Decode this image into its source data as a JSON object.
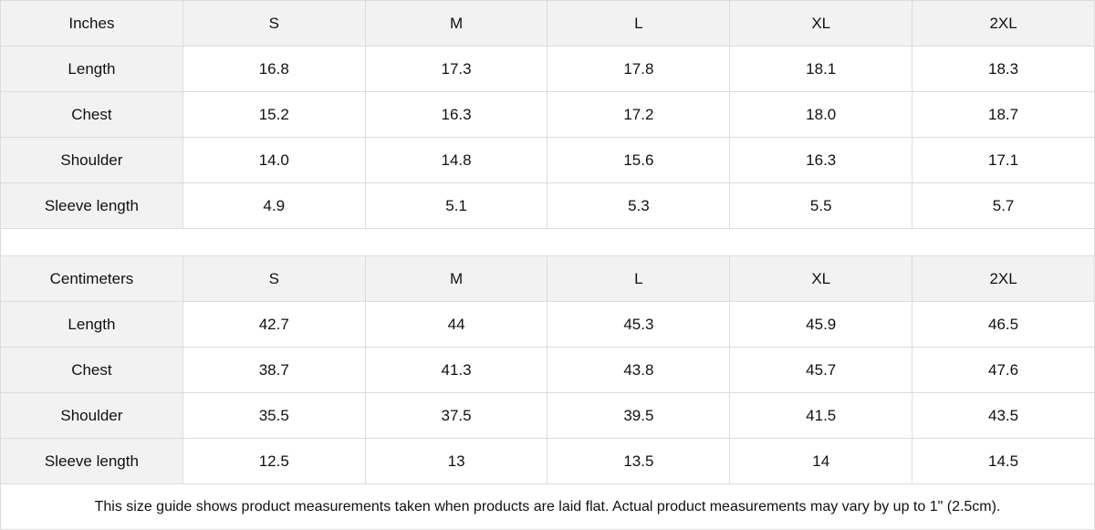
{
  "inches": {
    "header": [
      "Inches",
      "S",
      "M",
      "L",
      "XL",
      "2XL"
    ],
    "rows": [
      [
        "Length",
        "16.8",
        "17.3",
        "17.8",
        "18.1",
        "18.3"
      ],
      [
        "Chest",
        "15.2",
        "16.3",
        "17.2",
        "18.0",
        "18.7"
      ],
      [
        "Shoulder",
        "14.0",
        "14.8",
        "15.6",
        "16.3",
        "17.1"
      ],
      [
        "Sleeve length",
        "4.9",
        "5.1",
        "5.3",
        "5.5",
        "5.7"
      ]
    ]
  },
  "centimeters": {
    "header": [
      "Centimeters",
      "S",
      "M",
      "L",
      "XL",
      "2XL"
    ],
    "rows": [
      [
        "Length",
        "42.7",
        "44",
        "45.3",
        "45.9",
        "46.5"
      ],
      [
        "Chest",
        "38.7",
        "41.3",
        "43.8",
        "45.7",
        "47.6"
      ],
      [
        "Shoulder",
        "35.5",
        "37.5",
        "39.5",
        "41.5",
        "43.5"
      ],
      [
        "Sleeve length",
        "12.5",
        "13",
        "13.5",
        "14",
        "14.5"
      ]
    ]
  },
  "note": "This size guide shows product measurements taken when products are laid flat.  Actual product measurements may vary by up to 1\" (2.5cm).",
  "colors": {
    "header_bg": "#f2f2f2",
    "border": "#dcdcdc"
  }
}
